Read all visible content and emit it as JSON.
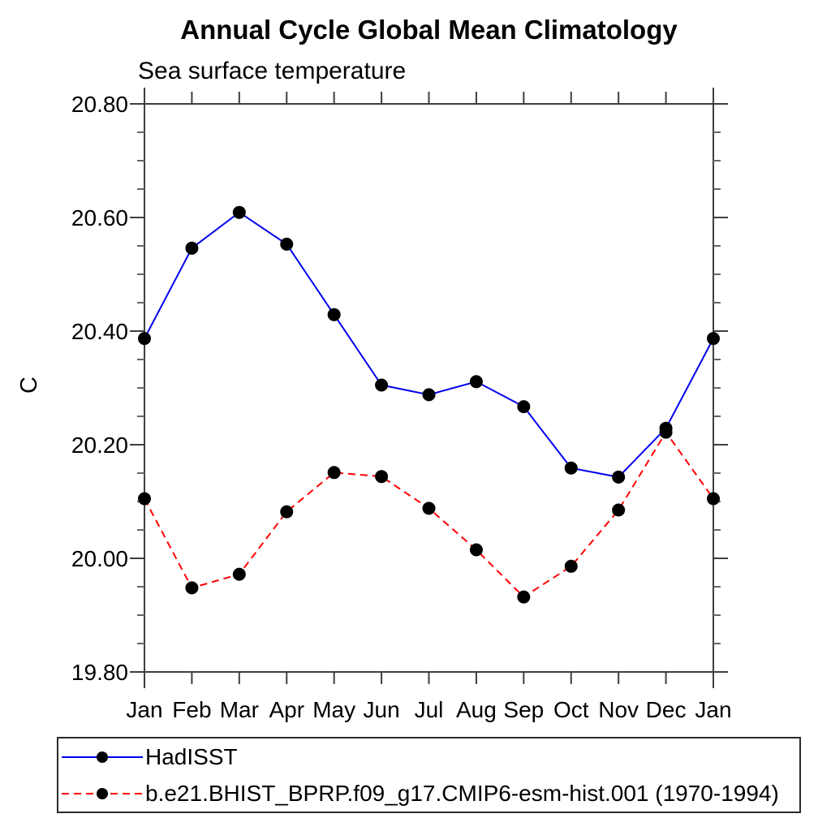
{
  "page": {
    "background": "#ffffff"
  },
  "chart_data": {
    "type": "line",
    "title": "Annual Cycle Global Mean Climatology",
    "subtitle": "Sea surface temperature",
    "ylabel": "C",
    "xlabel": "",
    "x_categories": [
      "Jan",
      "Feb",
      "Mar",
      "Apr",
      "May",
      "Jun",
      "Jul",
      "Aug",
      "Sep",
      "Oct",
      "Nov",
      "Dec",
      "Jan"
    ],
    "ylim": [
      19.8,
      20.8
    ],
    "ytick_values": [
      19.8,
      20.0,
      20.2,
      20.4,
      20.6,
      20.8
    ],
    "ytick_labels": [
      "19.80",
      "20.00",
      "20.20",
      "20.40",
      "20.60",
      "20.80"
    ],
    "y_minor_interval": 0.05,
    "grid": false,
    "axis_color": "#3f3f3f",
    "minor_tick_color": "#666666",
    "marker": {
      "shape": "circle",
      "color": "#000000",
      "radius": 8
    },
    "legend": {
      "position": "below-plot-left",
      "border": true
    },
    "series": [
      {
        "name": "HadISST",
        "color": "#0000ee",
        "style": "solid",
        "values": [
          20.387,
          20.546,
          20.609,
          20.553,
          20.429,
          20.305,
          20.288,
          20.311,
          20.267,
          20.159,
          20.143,
          20.229,
          20.387
        ]
      },
      {
        "name": "b.e21.BHIST_BPRP.f09_g17.CMIP6-esm-hist.001 (1970-1994)",
        "color": "#ff0000",
        "style": "dashed",
        "values": [
          20.105,
          19.948,
          19.972,
          20.082,
          20.151,
          20.144,
          20.088,
          20.015,
          19.932,
          19.986,
          20.085,
          20.222,
          20.105
        ]
      }
    ]
  }
}
